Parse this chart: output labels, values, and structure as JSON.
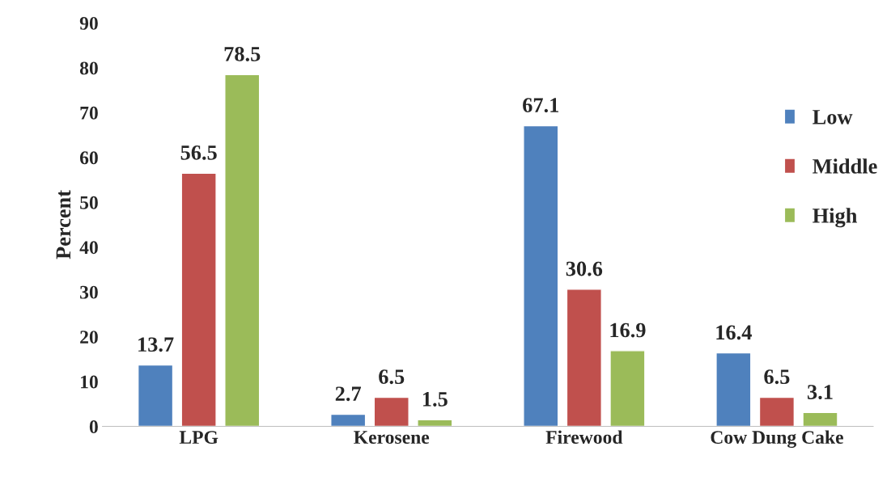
{
  "chart_data": {
    "type": "bar",
    "ylabel": "Percent",
    "categories": [
      "LPG",
      "Kerosene",
      "Firewood",
      "Cow Dung Cake"
    ],
    "series": [
      {
        "name": "Low",
        "color": "#4f81bd",
        "values": [
          13.7,
          2.7,
          67.1,
          16.4
        ]
      },
      {
        "name": "Middle",
        "color": "#c0504d",
        "values": [
          56.5,
          6.5,
          30.6,
          6.5
        ]
      },
      {
        "name": "High",
        "color": "#9bbb59",
        "values": [
          78.5,
          1.5,
          16.9,
          3.1
        ]
      }
    ],
    "ylim": [
      0,
      90
    ],
    "yticks": [
      0,
      10,
      20,
      30,
      40,
      50,
      60,
      70,
      80,
      90
    ],
    "grid": false,
    "legend": "right",
    "data_labels": true
  }
}
